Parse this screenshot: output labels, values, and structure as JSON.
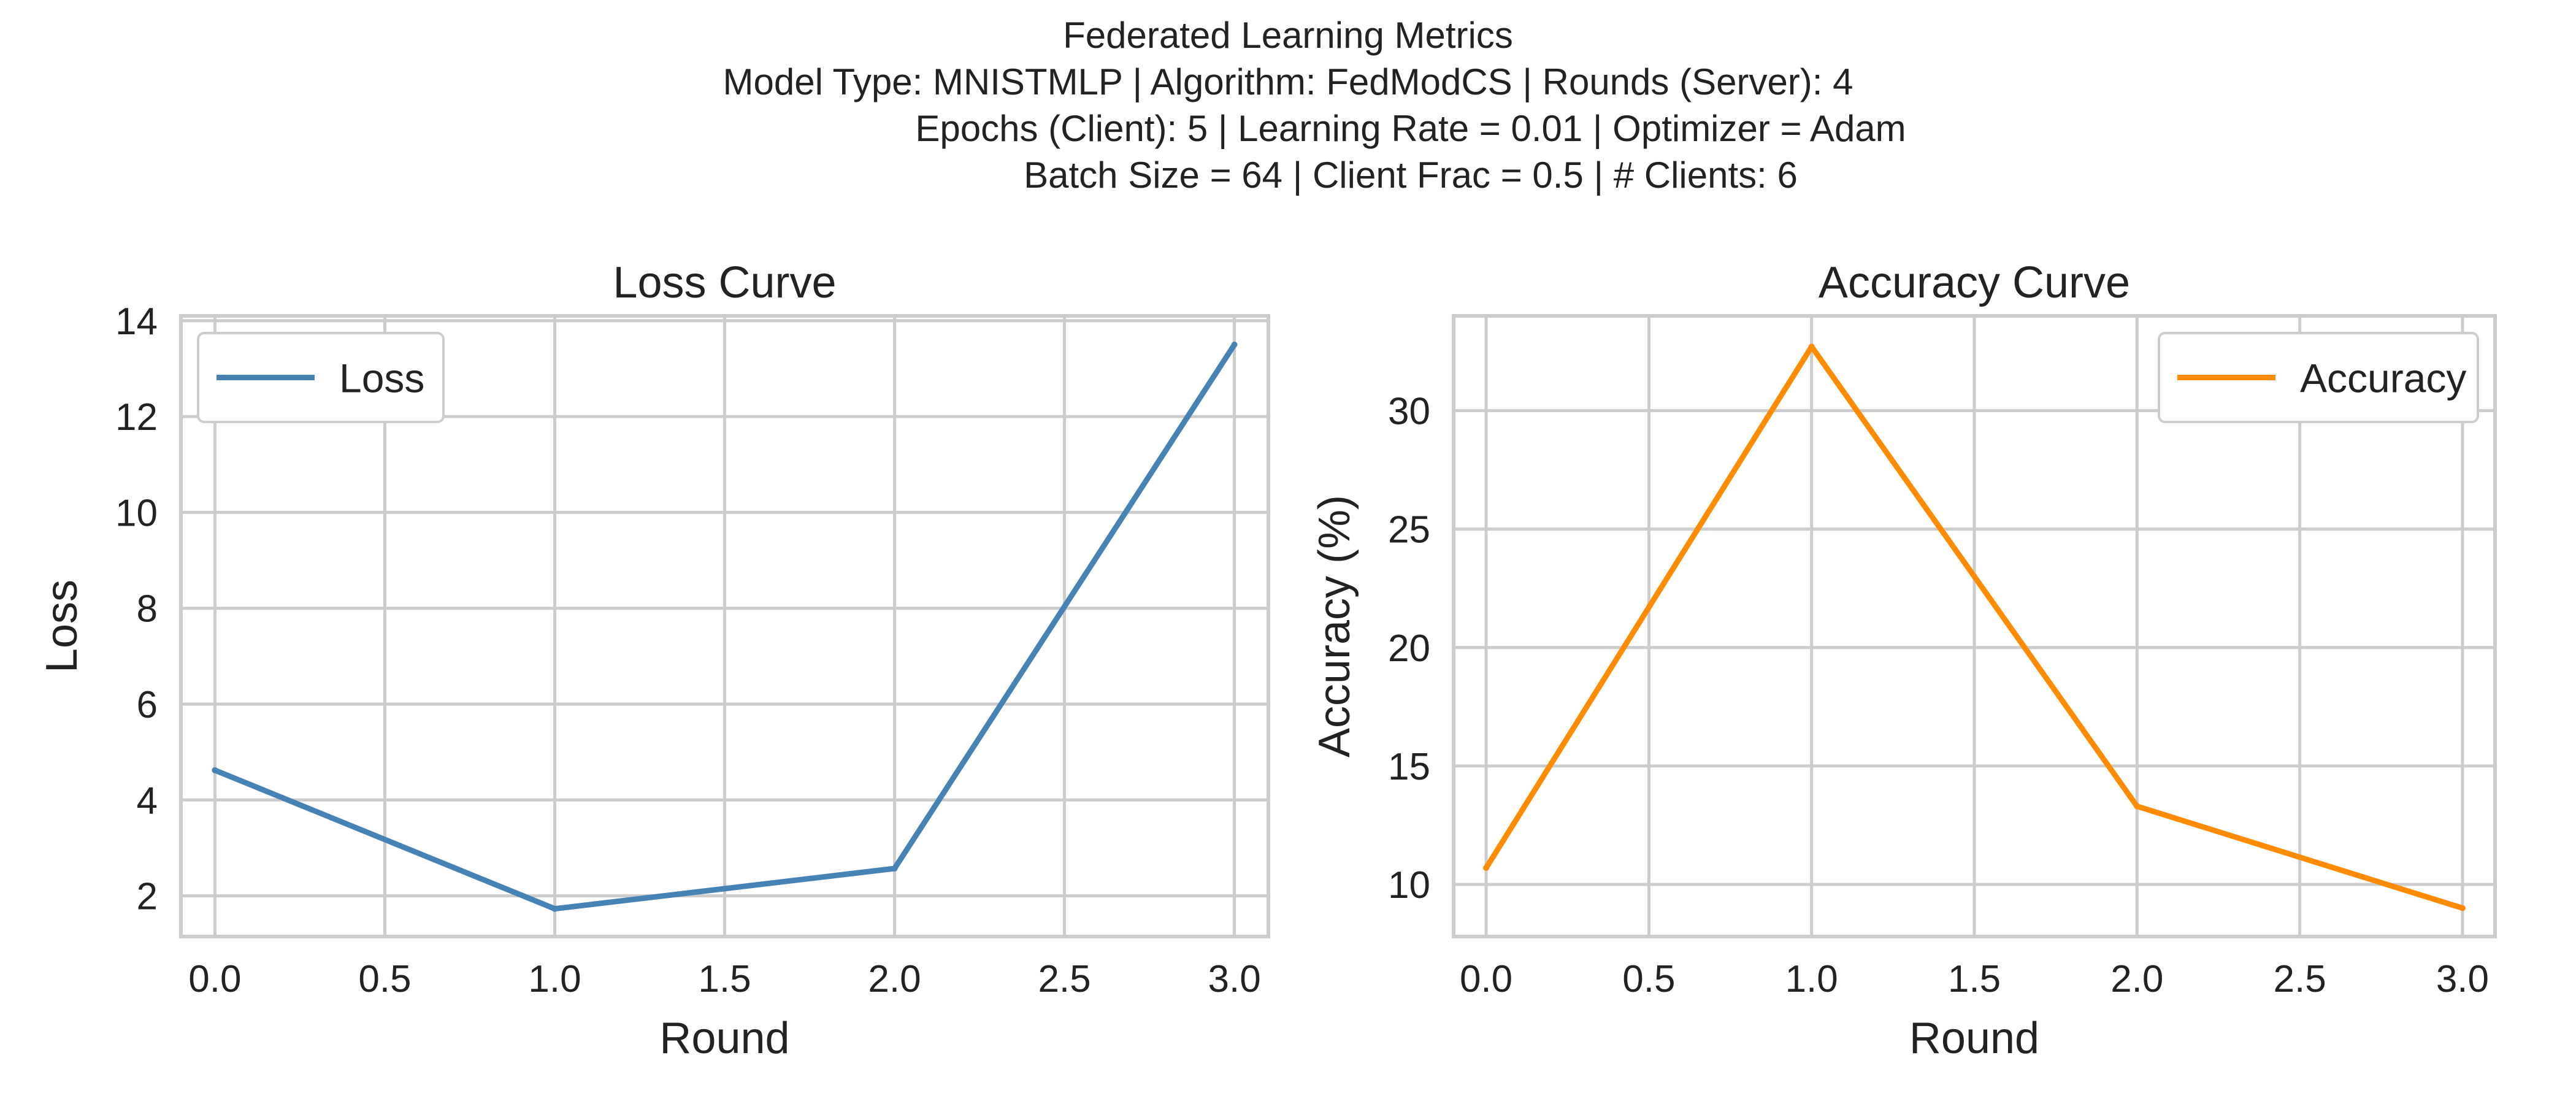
{
  "suptitle": {
    "lines": [
      "Federated Learning Metrics",
      "Model Type: MNISTMLP | Algorithm: FedModCS | Rounds (Server): 4",
      "Epochs (Client): 5 | Learning Rate = 0.01 | Optimizer = Adam",
      "Batch Size = 64 | Client Frac = 0.5 | # Clients: 6"
    ]
  },
  "chart_data": [
    {
      "type": "line",
      "title": "Loss Curve",
      "xlabel": "Round",
      "ylabel": "Loss",
      "xlim": [
        -0.1,
        3.1
      ],
      "ylim": [
        1.15,
        14.1
      ],
      "xticks": [
        0.0,
        0.5,
        1.0,
        1.5,
        2.0,
        2.5,
        3.0
      ],
      "xtick_labels": [
        "0.0",
        "0.5",
        "1.0",
        "1.5",
        "2.0",
        "2.5",
        "3.0"
      ],
      "yticks": [
        2,
        4,
        6,
        8,
        10,
        12,
        14
      ],
      "ytick_labels": [
        "2",
        "4",
        "6",
        "8",
        "10",
        "12",
        "14"
      ],
      "grid": true,
      "legend_position": "top-left",
      "series": [
        {
          "name": "Loss",
          "color": "#4682b4",
          "x": [
            0,
            1,
            2,
            3
          ],
          "y": [
            4.62,
            1.73,
            2.57,
            13.5
          ]
        }
      ]
    },
    {
      "type": "line",
      "title": "Accuracy Curve",
      "xlabel": "Round",
      "ylabel": "Accuracy (%)",
      "xlim": [
        -0.1,
        3.1
      ],
      "ylim": [
        7.8,
        34.0
      ],
      "xticks": [
        0.0,
        0.5,
        1.0,
        1.5,
        2.0,
        2.5,
        3.0
      ],
      "xtick_labels": [
        "0.0",
        "0.5",
        "1.0",
        "1.5",
        "2.0",
        "2.5",
        "3.0"
      ],
      "yticks": [
        10,
        15,
        20,
        25,
        30
      ],
      "ytick_labels": [
        "10",
        "15",
        "20",
        "25",
        "30"
      ],
      "grid": true,
      "legend_position": "top-right",
      "series": [
        {
          "name": "Accuracy",
          "color": "#ff8c00",
          "x": [
            0,
            1,
            2,
            3
          ],
          "y": [
            10.7,
            32.7,
            13.3,
            9.0
          ]
        }
      ]
    }
  ]
}
